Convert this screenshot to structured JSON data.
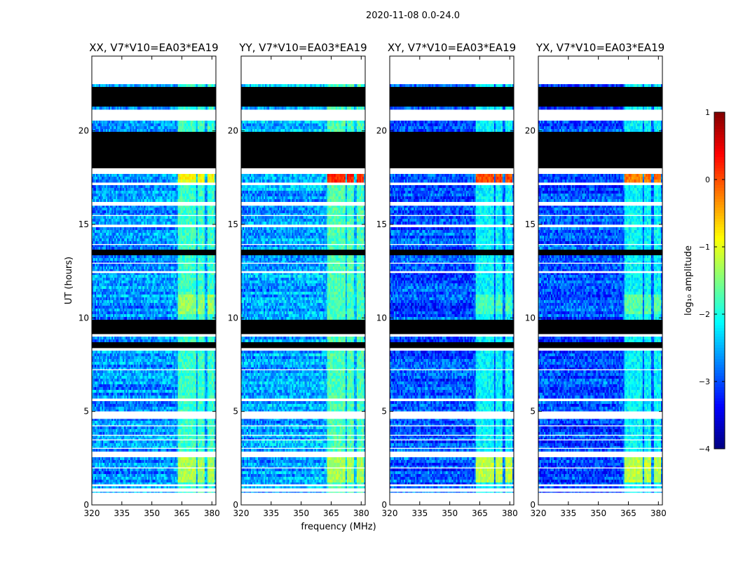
{
  "chart_data": {
    "type": "heatmap",
    "suptitle": "2020-11-08 0.0-24.0",
    "ylabel": "UT (hours)",
    "xlabel": "frequency (MHz)",
    "xlim": [
      320,
      382
    ],
    "ylim": [
      0,
      24
    ],
    "xticks": [
      320,
      335,
      350,
      365,
      380
    ],
    "yticks": [
      0,
      5,
      10,
      15,
      20
    ],
    "colorbar": {
      "label": "log₁₀ amplitude",
      "range": [
        -4,
        1
      ],
      "ticks": [
        1,
        0,
        -1,
        -2,
        -3,
        -4
      ],
      "colormap": "jet"
    },
    "rfi_band_mhz": [
      363,
      380
    ],
    "rfi_subbands_mhz": [
      [
        363,
        367
      ],
      [
        367.5,
        372
      ],
      [
        373,
        376.5
      ],
      [
        377.5,
        381
      ]
    ],
    "bright_intervals": [
      {
        "t": [
          17.2,
          17.75
        ],
        "xx": -0.9,
        "yy": 0.2,
        "xy": 0.0,
        "yx": -0.2
      },
      {
        "t": [
          1.2,
          2.5
        ],
        "xx": -1.3,
        "yy": -1.3,
        "xy": -1.2,
        "yx": -1.2
      },
      {
        "t": [
          10.2,
          11.2
        ],
        "xx": -1.4,
        "yy": -1.8,
        "xy": -1.8,
        "yx": -1.7
      }
    ],
    "flagged_white_hours": [
      [
        22.5,
        24.0
      ],
      [
        20.6,
        21.1
      ],
      [
        17.76,
        18.0
      ],
      [
        1.0,
        1.1
      ],
      [
        0.7,
        0.85
      ],
      [
        0.0,
        0.65
      ],
      [
        17.15,
        17.2
      ],
      [
        16.0,
        16.2
      ],
      [
        15.45,
        15.5
      ],
      [
        14.9,
        14.95
      ],
      [
        13.9,
        13.95
      ],
      [
        12.9,
        12.95
      ],
      [
        12.4,
        12.5
      ],
      [
        9.0,
        9.1
      ],
      [
        8.3,
        8.35
      ],
      [
        7.2,
        7.25
      ],
      [
        5.6,
        5.65
      ],
      [
        4.6,
        5.0
      ],
      [
        4.2,
        4.25
      ],
      [
        3.7,
        3.75
      ],
      [
        3.45,
        3.5
      ],
      [
        3.0,
        3.05
      ],
      [
        2.6,
        2.85
      ],
      [
        1.95,
        2.0
      ]
    ],
    "flagged_black_hours": [
      [
        21.3,
        22.4
      ],
      [
        18.0,
        20.0
      ],
      [
        13.3,
        13.6
      ],
      [
        9.2,
        9.85
      ],
      [
        8.4,
        8.7
      ]
    ],
    "panels": [
      {
        "title": "XX, V7*V10=EA03*EA19",
        "pol": "xx",
        "base_level": -2.7
      },
      {
        "title": "YY, V7*V10=EA03*EA19",
        "pol": "yy",
        "base_level": -2.6
      },
      {
        "title": "XY, V7*V10=EA03*EA19",
        "pol": "xy",
        "base_level": -3.0
      },
      {
        "title": "YX, V7*V10=EA03*EA19",
        "pol": "yx",
        "base_level": -3.0
      }
    ]
  }
}
